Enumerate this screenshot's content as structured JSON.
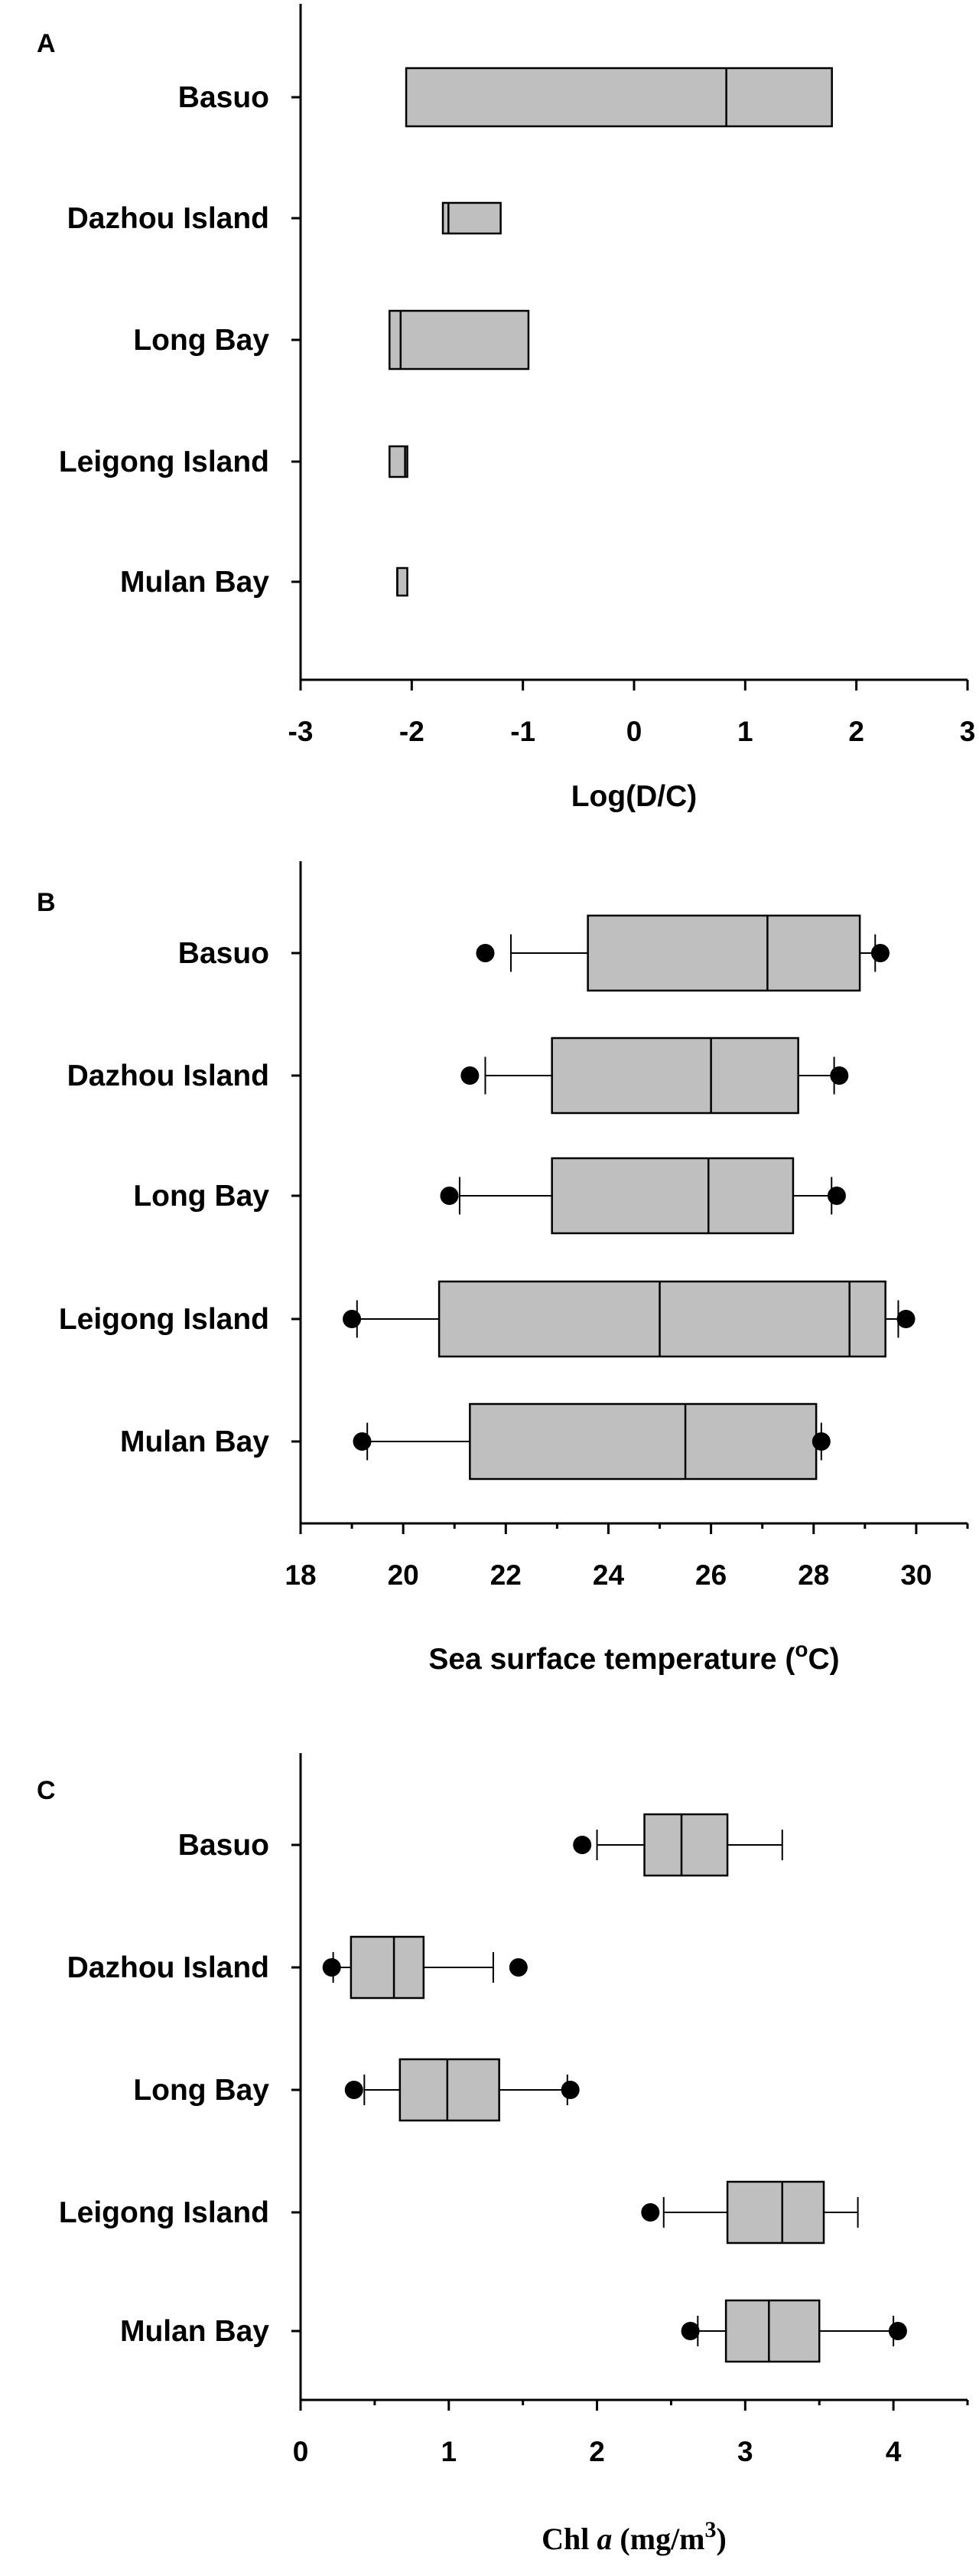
{
  "chart_data": [
    {
      "panel": "A",
      "type": "box",
      "title": "",
      "xlabel": "Log(D/C)",
      "ylabel": "",
      "xlim": [
        -3,
        3
      ],
      "xticks": [
        "-3",
        "-2",
        "-1",
        "0",
        "1",
        "2",
        "3"
      ],
      "categories": [
        "Basuo",
        "Dazhou Island",
        "Long Bay",
        "Leigong Island",
        "Mulan Bay"
      ],
      "boxes": [
        {
          "q1": -2.05,
          "median": 0.83,
          "q3": 1.78
        },
        {
          "q1": -1.72,
          "median": -1.67,
          "q3": -1.2
        },
        {
          "q1": -2.2,
          "median": -2.1,
          "q3": -0.95
        },
        {
          "q1": -2.2,
          "median": -2.06,
          "q3": -2.04
        },
        {
          "q1": -2.13,
          "median": -2.13,
          "q3": -2.04
        }
      ]
    },
    {
      "panel": "B",
      "type": "box",
      "title": "",
      "xlabel": "Sea surface temperature (",
      "xlabel_sup": "o",
      "xlabel_end": "C)",
      "ylabel": "",
      "xlim": [
        18,
        31
      ],
      "xticks": [
        "18",
        "20",
        "22",
        "24",
        "26",
        "28",
        "30"
      ],
      "categories": [
        "Basuo",
        "Dazhou Island",
        "Long Bay",
        "Leigong Island",
        "Mulan Bay"
      ],
      "boxes": [
        {
          "wlo": 22.1,
          "q1": 23.6,
          "median": 27.1,
          "q3": 28.9,
          "whi": 29.2,
          "outliers": [
            21.6,
            29.3
          ]
        },
        {
          "wlo": 21.6,
          "q1": 22.9,
          "median": 26.0,
          "q3": 27.7,
          "whi": 28.4,
          "outliers": [
            21.3,
            28.5
          ]
        },
        {
          "wlo": 21.1,
          "q1": 22.9,
          "median": 25.95,
          "q3": 27.6,
          "whi": 28.35,
          "outliers": [
            20.9,
            28.45
          ]
        },
        {
          "wlo": 19.1,
          "q1": 20.7,
          "median": 25.0,
          "q3": 29.4,
          "whi": 29.65,
          "extra_lines": [
            28.7
          ],
          "outliers": [
            19.0,
            29.8
          ]
        },
        {
          "wlo": 19.3,
          "q1": 21.3,
          "median": 25.5,
          "q3": 28.05,
          "whi": 28.15,
          "outliers": [
            19.2,
            28.15
          ]
        }
      ]
    },
    {
      "panel": "C",
      "type": "box",
      "title": "",
      "xlabel_pre": "Chl ",
      "xlabel_italic": "a",
      "xlabel_mid": " (mg/m",
      "xlabel_sup": "3",
      "xlabel_end": ")",
      "ylabel": "",
      "xlim": [
        0,
        4.5
      ],
      "xticks": [
        "0",
        "1",
        "2",
        "3",
        "4"
      ],
      "categories": [
        "Basuo",
        "Dazhou Island",
        "Long Bay",
        "Leigong Island",
        "Mulan Bay"
      ],
      "boxes": [
        {
          "wlo": 2.0,
          "q1": 2.32,
          "median": 2.57,
          "q3": 2.88,
          "whi": 3.25,
          "outliers": [
            1.9
          ]
        },
        {
          "wlo": 0.22,
          "q1": 0.34,
          "median": 0.63,
          "q3": 0.83,
          "whi": 1.3,
          "outliers": [
            0.21,
            1.47
          ]
        },
        {
          "wlo": 0.43,
          "q1": 0.67,
          "median": 0.99,
          "q3": 1.34,
          "whi": 1.8,
          "outliers": [
            0.36,
            1.82
          ]
        },
        {
          "wlo": 2.45,
          "q1": 2.88,
          "median": 3.25,
          "q3": 3.53,
          "whi": 3.76,
          "outliers": [
            2.36
          ]
        },
        {
          "wlo": 2.68,
          "q1": 2.87,
          "median": 3.16,
          "q3": 3.5,
          "whi": 4.0,
          "outliers": [
            2.63,
            4.03
          ]
        }
      ]
    }
  ]
}
